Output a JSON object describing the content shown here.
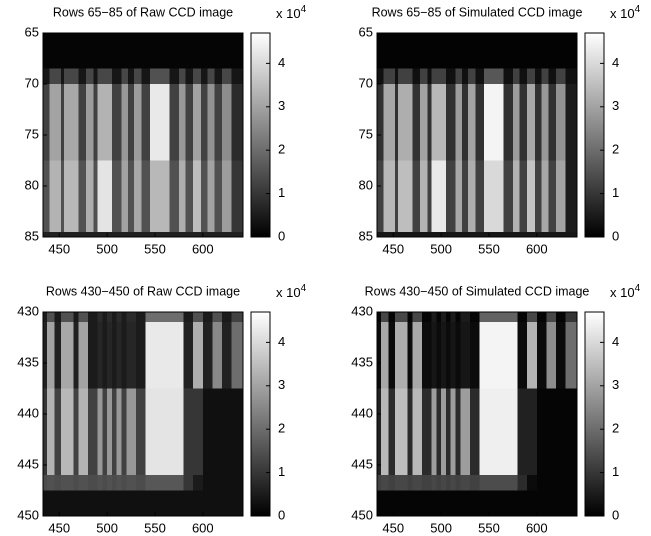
{
  "chart_data": [
    {
      "type": "heatmap",
      "title": "Rows 65−85 of Raw CCD image",
      "colormap": "gray",
      "xlim": [
        433,
        642
      ],
      "xticks": [
        450,
        500,
        550,
        600
      ],
      "ylim": [
        65,
        85
      ],
      "yticks": [
        65,
        70,
        75,
        80,
        85
      ],
      "clim": [
        0,
        4.7
      ],
      "cticks": [
        0,
        1,
        2,
        3,
        4
      ],
      "colorbar_multiplier": "x 10",
      "colorbar_exponent": "4",
      "x_edges": [
        433,
        440,
        452,
        455,
        470,
        478,
        486,
        490,
        505,
        515,
        522,
        528,
        536,
        545,
        565,
        575,
        582,
        590,
        598,
        605,
        612,
        620,
        630,
        642
      ],
      "y_edges": [
        65,
        68.5,
        70,
        77.5,
        84.5,
        85
      ],
      "z": [
        [
          0.1,
          0.1,
          0.1,
          0.1,
          0.1,
          0.1,
          0.1,
          0.1,
          0.1,
          0.1,
          0.1,
          0.1,
          0.1,
          0.1,
          0.1,
          0.1,
          0.1,
          0.1,
          0.1,
          0.1,
          0.1,
          0.1,
          0.1
        ],
        [
          0.4,
          1.3,
          0.4,
          1.3,
          0.4,
          1.3,
          0.4,
          1.3,
          0.4,
          1.3,
          0.4,
          1.3,
          0.4,
          1.5,
          0.4,
          1.3,
          0.4,
          1.3,
          0.4,
          1.3,
          0.4,
          1.3,
          0.4
        ],
        [
          1.2,
          3.0,
          1.2,
          3.1,
          1.2,
          2.9,
          1.2,
          3.3,
          1.2,
          2.8,
          1.2,
          2.9,
          1.2,
          4.3,
          1.2,
          2.8,
          1.2,
          3.0,
          1.2,
          2.7,
          1.2,
          2.6,
          0.8
        ],
        [
          1.5,
          3.3,
          1.5,
          3.4,
          1.5,
          3.2,
          1.5,
          4.2,
          1.5,
          3.0,
          1.5,
          3.1,
          1.5,
          3.4,
          1.5,
          3.2,
          1.5,
          3.5,
          1.5,
          3.0,
          1.5,
          2.9,
          1.0
        ],
        [
          0.6,
          0.6,
          0.6,
          0.6,
          0.6,
          0.6,
          0.6,
          0.6,
          0.6,
          0.6,
          0.6,
          0.6,
          0.6,
          0.6,
          0.6,
          0.6,
          0.6,
          0.6,
          0.6,
          0.6,
          0.6,
          0.6,
          0.6
        ]
      ]
    },
    {
      "type": "heatmap",
      "title": "Rows 65−85 of Simulated CCD image",
      "colormap": "gray",
      "xlim": [
        433,
        642
      ],
      "xticks": [
        450,
        500,
        550,
        600
      ],
      "ylim": [
        65,
        85
      ],
      "yticks": [
        65,
        70,
        75,
        80,
        85
      ],
      "clim": [
        0,
        4.7
      ],
      "cticks": [
        0,
        1,
        2,
        3,
        4
      ],
      "colorbar_multiplier": "x 10",
      "colorbar_exponent": "4",
      "x_edges": [
        433,
        440,
        452,
        455,
        470,
        478,
        486,
        490,
        505,
        515,
        522,
        528,
        536,
        545,
        565,
        575,
        582,
        590,
        598,
        605,
        612,
        620,
        630,
        642
      ],
      "y_edges": [
        65,
        68.5,
        70,
        77.5,
        84.5,
        85
      ],
      "z": [
        [
          0.05,
          0.05,
          0.05,
          0.05,
          0.05,
          0.05,
          0.05,
          0.05,
          0.05,
          0.05,
          0.05,
          0.05,
          0.05,
          0.05,
          0.05,
          0.05,
          0.05,
          0.05,
          0.05,
          0.05,
          0.05,
          0.05,
          0.05
        ],
        [
          0.3,
          1.2,
          0.3,
          1.2,
          0.3,
          1.2,
          0.3,
          1.2,
          0.3,
          1.2,
          0.3,
          1.2,
          0.3,
          1.6,
          0.3,
          1.2,
          0.3,
          1.2,
          0.3,
          1.2,
          0.3,
          1.2,
          0.3
        ],
        [
          0.9,
          3.1,
          0.9,
          3.2,
          0.9,
          3.0,
          0.9,
          3.4,
          0.9,
          2.9,
          0.9,
          3.0,
          0.9,
          4.5,
          0.9,
          2.9,
          0.9,
          3.1,
          0.9,
          2.8,
          0.9,
          2.7,
          0.5
        ],
        [
          1.2,
          3.4,
          1.2,
          3.5,
          1.2,
          3.3,
          1.2,
          4.3,
          1.2,
          3.1,
          1.2,
          3.2,
          1.2,
          4.0,
          1.2,
          3.3,
          1.2,
          3.6,
          1.2,
          3.1,
          1.2,
          3.0,
          0.5
        ],
        [
          0.4,
          0.4,
          0.4,
          0.4,
          0.4,
          0.4,
          0.4,
          0.4,
          0.4,
          0.4,
          0.4,
          0.4,
          0.4,
          0.4,
          0.4,
          0.4,
          0.4,
          0.4,
          0.4,
          0.4,
          0.4,
          0.4,
          0.4
        ]
      ]
    },
    {
      "type": "heatmap",
      "title": "Rows 430−450 of Raw CCD image",
      "colormap": "gray",
      "xlim": [
        433,
        642
      ],
      "xticks": [
        450,
        500,
        550,
        600
      ],
      "ylim": [
        430,
        450
      ],
      "yticks": [
        430,
        435,
        440,
        445,
        450
      ],
      "clim": [
        0,
        4.7
      ],
      "cticks": [
        0,
        1,
        2,
        3,
        4
      ],
      "colorbar_multiplier": "x 10",
      "colorbar_exponent": "4",
      "x_edges": [
        433,
        437,
        445,
        452,
        465,
        470,
        480,
        490,
        495,
        500,
        505,
        510,
        515,
        520,
        530,
        540,
        580,
        590,
        600,
        610,
        620,
        630,
        642
      ],
      "y_edges": [
        430,
        431,
        437.5,
        446,
        447.5,
        450
      ],
      "z": [
        [
          0.5,
          1.5,
          0.5,
          1.5,
          0.5,
          1.5,
          0.5,
          0.8,
          0.5,
          0.8,
          0.5,
          0.8,
          0.5,
          0.8,
          0.5,
          2.0,
          0.5,
          1.5,
          0.5,
          1.5,
          0.5,
          1.2
        ],
        [
          0.6,
          3.0,
          0.6,
          3.1,
          0.6,
          3.0,
          0.5,
          0.7,
          0.5,
          0.7,
          0.5,
          0.7,
          0.5,
          0.7,
          0.5,
          4.3,
          0.6,
          3.2,
          0.6,
          2.5,
          0.6,
          2.0
        ],
        [
          1.0,
          3.3,
          1.2,
          3.4,
          1.2,
          3.3,
          1.2,
          2.8,
          1.2,
          2.8,
          1.2,
          2.8,
          1.2,
          2.8,
          1.2,
          4.2,
          1.0,
          1.0,
          0.3,
          0.3,
          0.3,
          0.3
        ],
        [
          1.4,
          1.5,
          1.4,
          1.5,
          1.4,
          1.5,
          1.4,
          1.5,
          1.4,
          1.5,
          1.4,
          1.5,
          1.4,
          1.5,
          1.4,
          1.6,
          1.0,
          0.5,
          0.3,
          0.3,
          0.3,
          0.3
        ],
        [
          0.3,
          0.3,
          0.3,
          0.3,
          0.3,
          0.3,
          0.3,
          0.3,
          0.3,
          0.3,
          0.3,
          0.3,
          0.3,
          0.3,
          0.3,
          0.3,
          0.3,
          0.3,
          0.3,
          0.3,
          0.3,
          0.3
        ]
      ]
    },
    {
      "type": "heatmap",
      "title": "Rows 430−450 of Simulated CCD image",
      "colormap": "gray",
      "xlim": [
        433,
        642
      ],
      "xticks": [
        450,
        500,
        550,
        600
      ],
      "ylim": [
        430,
        450
      ],
      "yticks": [
        430,
        435,
        440,
        445,
        450
      ],
      "clim": [
        0,
        4.7
      ],
      "cticks": [
        0,
        1,
        2,
        3,
        4
      ],
      "colorbar_multiplier": "x 10",
      "colorbar_exponent": "4",
      "x_edges": [
        433,
        437,
        445,
        452,
        465,
        470,
        480,
        490,
        495,
        500,
        505,
        510,
        515,
        520,
        530,
        540,
        580,
        590,
        600,
        610,
        620,
        630,
        642
      ],
      "y_edges": [
        430,
        431,
        437.5,
        446,
        447.5,
        450
      ],
      "z": [
        [
          0.1,
          1.3,
          0.1,
          1.3,
          0.1,
          1.3,
          0.1,
          0.5,
          0.1,
          0.5,
          0.1,
          0.5,
          0.1,
          0.5,
          0.1,
          1.8,
          0.1,
          1.3,
          0.1,
          1.3,
          0.1,
          1.0
        ],
        [
          0.2,
          3.1,
          0.2,
          3.2,
          0.2,
          3.1,
          0.2,
          0.4,
          0.2,
          0.4,
          0.2,
          0.4,
          0.2,
          0.4,
          0.2,
          4.5,
          0.2,
          3.3,
          0.2,
          2.6,
          0.2,
          2.0
        ],
        [
          0.6,
          3.4,
          0.8,
          3.5,
          0.8,
          3.4,
          0.8,
          2.9,
          0.8,
          2.9,
          0.8,
          2.9,
          0.8,
          2.9,
          0.8,
          4.4,
          0.6,
          0.6,
          0.1,
          0.1,
          0.1,
          0.1
        ],
        [
          1.2,
          1.3,
          1.2,
          1.3,
          1.2,
          1.3,
          1.2,
          1.3,
          1.2,
          1.3,
          1.2,
          1.3,
          1.2,
          1.3,
          1.2,
          1.4,
          0.8,
          0.2,
          0.1,
          0.1,
          0.1,
          0.1
        ],
        [
          0.1,
          0.1,
          0.1,
          0.1,
          0.1,
          0.1,
          0.1,
          0.1,
          0.1,
          0.1,
          0.1,
          0.1,
          0.1,
          0.1,
          0.1,
          0.1,
          0.1,
          0.1,
          0.1,
          0.1,
          0.1,
          0.1
        ]
      ]
    }
  ]
}
